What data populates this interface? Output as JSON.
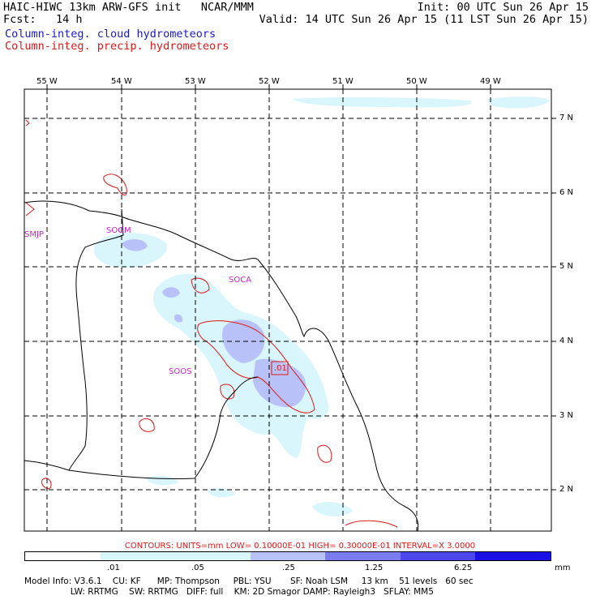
{
  "header": {
    "line1_left": "HAIC-HIWC 13km ARW-GFS init   NCAR/MMM",
    "line1_right": "Init: 00 UTC Sun 26 Apr 15",
    "line2_left": "Fcst:   14 h",
    "line2_right": "Valid: 14 UTC Sun 26 Apr 15 (11 LST Sun 26 Apr 15)",
    "field1": "Column-integ. cloud hydrometeors",
    "field2": "Column-integ. precip. hydrometeors"
  },
  "map": {
    "lon_labels": [
      "55 W",
      "54 W",
      "53 W",
      "52 W",
      "51 W",
      "50 W",
      "49 W"
    ],
    "lat_labels": [
      "7 N",
      "6 N",
      "5 N",
      "4 N",
      "3 N",
      "2 N"
    ],
    "stations": [
      "SMJP",
      "SOGM",
      "SOCA",
      "SOOS"
    ],
    "contour_label": ".01"
  },
  "legend": {
    "contours": "CONTOURS:  UNITS=mm  LOW= 0.10000E-01  HIGH= 0.30000E-01  INTERVAL=X  3.0000",
    "colors": [
      "#ffffff",
      "#d8f6fc",
      "#d8f6fc",
      "#b8c2f8",
      "#7a7cf0",
      "#4c48ec",
      "#1a10e4"
    ],
    "ticks": [
      ".01",
      ".05",
      ".25",
      "1.25",
      "6.25"
    ],
    "units": "mm"
  },
  "footer": {
    "line1": "Model Info: V3.6.1    CU: KF      MP: Thompson     PBL: YSU       SF: Noah LSM     13 km    51 levels   60 sec",
    "line2": "                 LW: RRTMG    SW: RRTMG   DIFF: full    KM: 2D Smagor DAMP: Rayleigh3   SFLAY: MM5"
  }
}
